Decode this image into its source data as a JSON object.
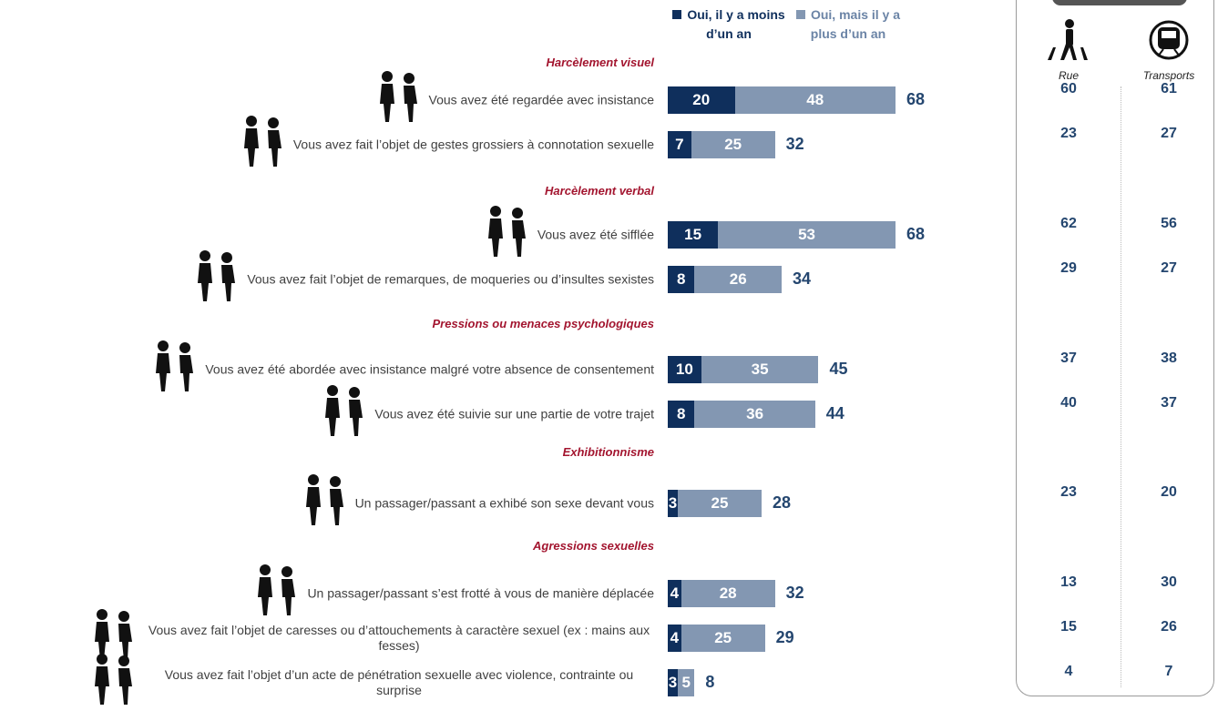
{
  "chart_data": {
    "type": "bar",
    "orientation": "horizontal",
    "stacked": true,
    "groups": [
      {
        "title": "Harcèlement visuel",
        "categories": [
          "Vous avez été regardée avec insistance",
          "Vous avez fait l’objet de gestes grossiers à connotation sexuelle"
        ]
      },
      {
        "title": "Harcèlement verbal",
        "categories": [
          "Vous avez été sifflée",
          "Vous avez fait l’objet de remarques, de moqueries ou d’insultes sexistes"
        ]
      },
      {
        "title": "Pressions ou menaces psychologiques",
        "categories": [
          "Vous avez été abordée avec insistance malgré votre absence de consentement",
          "Vous avez été suivie sur une partie de votre trajet"
        ]
      },
      {
        "title": "Exhibitionnisme",
        "categories": [
          "Un passager/passant a exhibé son sexe devant vous"
        ]
      },
      {
        "title": "Agressions sexuelles",
        "categories": [
          "Un passager/passant s’est frotté à vous de manière déplacée",
          "Vous avez fait l’objet de caresses ou d’attouchements à caractère sexuel (ex : mains aux fesses)",
          "Vous avez fait l’objet d’un acte de pénétration sexuelle avec violence, contrainte ou surprise"
        ]
      }
    ],
    "series": [
      {
        "name": "Oui, il y a moins d’un an",
        "color": "#0f2f5c",
        "values": [
          20,
          7,
          15,
          8,
          10,
          8,
          3,
          4,
          4,
          3
        ]
      },
      {
        "name": "Oui, mais il y a plus d’un an",
        "color": "#8397b2",
        "values": [
          48,
          25,
          53,
          26,
          35,
          36,
          25,
          28,
          25,
          5
        ]
      }
    ],
    "totals": [
      68,
      32,
      68,
      34,
      45,
      44,
      28,
      32,
      29,
      8
    ],
    "xlim": [
      0,
      68
    ]
  },
  "table": {
    "columns": [
      {
        "name": "Rue",
        "values": [
          60,
          23,
          62,
          29,
          37,
          40,
          23,
          13,
          15,
          4
        ]
      },
      {
        "name": "Transports",
        "values": [
          61,
          27,
          56,
          27,
          38,
          37,
          20,
          30,
          26,
          7
        ]
      }
    ]
  }
}
